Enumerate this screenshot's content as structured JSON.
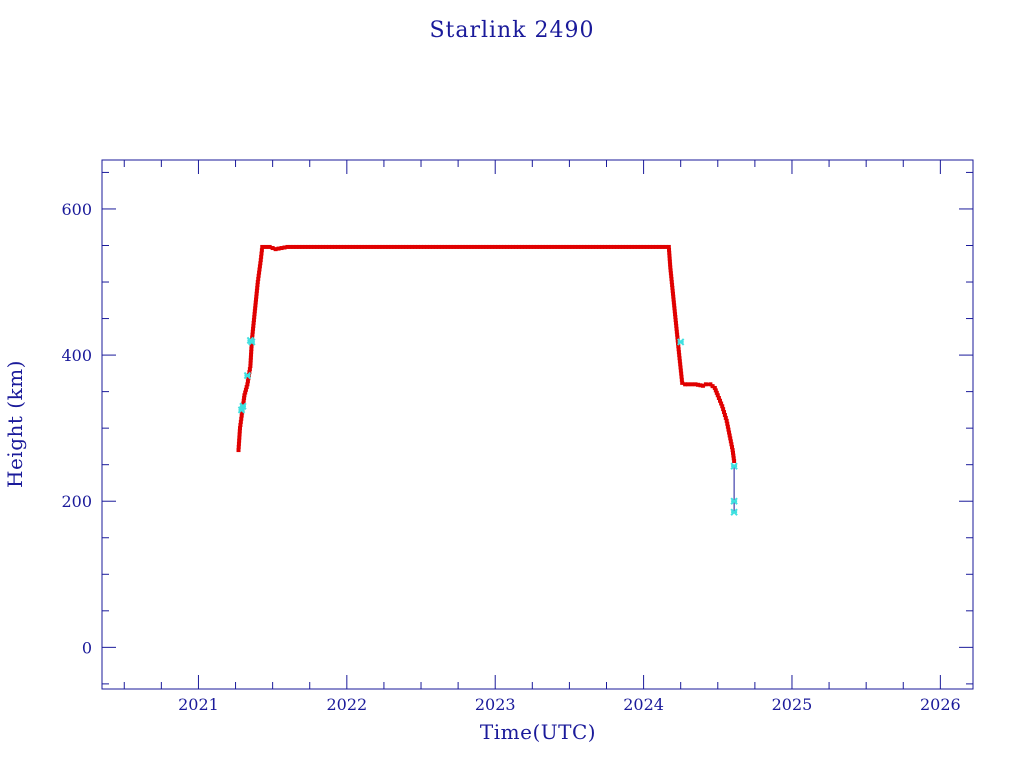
{
  "chart_data": {
    "type": "line",
    "title": "Starlink 2490",
    "xlabel": "Time(UTC)",
    "ylabel": "Height (km)",
    "xlim": [
      2020.35,
      2026.22
    ],
    "ylim": [
      -57,
      667
    ],
    "x_ticks": [
      "2021",
      "2022",
      "2023",
      "2024",
      "2025",
      "2026"
    ],
    "y_ticks": [
      "0",
      "200",
      "400",
      "600"
    ],
    "grid": false,
    "colors": {
      "axis": "#1a1a9a",
      "series": "#e00000",
      "highlight": "#40e0e0",
      "connector": "#1a1a9a"
    },
    "series": [
      {
        "x": [
          2021.27,
          2021.28,
          2021.3,
          2021.31,
          2021.33,
          2021.35,
          2021.36,
          2021.38,
          2021.4,
          2021.42,
          2021.43,
          2021.48,
          2021.52,
          2021.6,
          2021.8,
          2022.0,
          2022.5,
          2023.0,
          2023.5,
          2024.0,
          2024.17,
          2024.18,
          2024.2,
          2024.22,
          2024.24,
          2024.26,
          2024.28,
          2024.3,
          2024.35,
          2024.4,
          2024.42,
          2024.45,
          2024.48,
          2024.5,
          2024.53,
          2024.56,
          2024.58,
          2024.6,
          2024.61
        ],
        "values": [
          270,
          300,
          330,
          345,
          360,
          385,
          420,
          460,
          500,
          530,
          548,
          548,
          545,
          548,
          548,
          548,
          548,
          548,
          548,
          548,
          548,
          520,
          480,
          440,
          400,
          362,
          360,
          360,
          360,
          358,
          360,
          360,
          355,
          345,
          330,
          310,
          290,
          270,
          255
        ]
      }
    ],
    "highlight_points": {
      "x": [
        2021.29,
        2021.3,
        2021.33,
        2021.35,
        2021.36,
        2024.25,
        2024.61,
        2024.61,
        2024.61
      ],
      "values": [
        325,
        330,
        372,
        420,
        418,
        418,
        248,
        200,
        185
      ]
    },
    "connector": {
      "x": [
        2024.61,
        2024.61
      ],
      "values": [
        248,
        185
      ]
    }
  }
}
